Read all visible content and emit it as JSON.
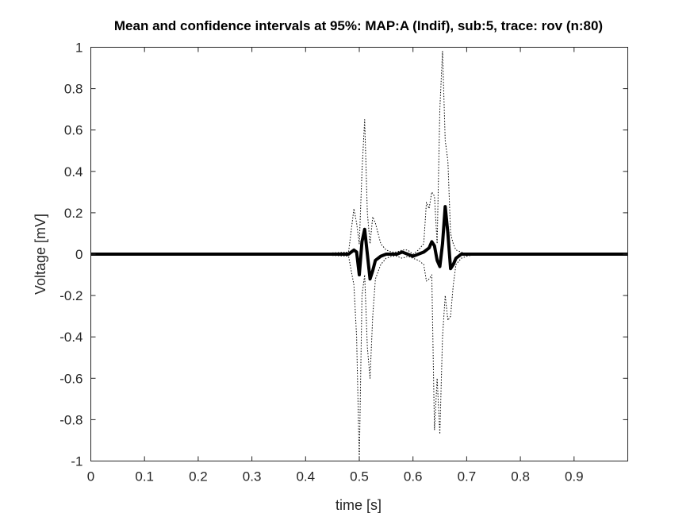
{
  "chart_data": {
    "type": "line",
    "title": "Mean and confidence intervals at 95%: MAP:A (Indif), sub:5, trace: rov (n:80)",
    "xlabel": "time [s]",
    "ylabel": "Voltage [mV]",
    "xlim": [
      0,
      1
    ],
    "ylim": [
      -1,
      1
    ],
    "xticks": [
      0,
      0.1,
      0.2,
      0.3,
      0.4,
      0.5,
      0.6,
      0.7,
      0.8,
      0.9
    ],
    "xtick_labels": [
      "0",
      "0.1",
      "0.2",
      "0.3",
      "0.4",
      "0.5",
      "0.6",
      "0.7",
      "0.8",
      "0.9"
    ],
    "yticks": [
      -1,
      -0.8,
      -0.6,
      -0.4,
      -0.2,
      0,
      0.2,
      0.4,
      0.6,
      0.8,
      1
    ],
    "ytick_labels": [
      "-1",
      "-0.8",
      "-0.6",
      "-0.4",
      "-0.2",
      "0",
      "0.2",
      "0.4",
      "0.6",
      "0.8",
      "1"
    ],
    "grid": false,
    "legend": "none",
    "colors": {
      "line": "#000000",
      "axis": "#262626",
      "background": "#ffffff"
    },
    "series": [
      {
        "role": "mean",
        "style": "solid-thick",
        "x": [
          0,
          0.1,
          0.2,
          0.3,
          0.4,
          0.48,
          0.49,
          0.495,
          0.5,
          0.505,
          0.51,
          0.515,
          0.52,
          0.525,
          0.53,
          0.54,
          0.55,
          0.56,
          0.57,
          0.58,
          0.59,
          0.6,
          0.61,
          0.62,
          0.63,
          0.635,
          0.64,
          0.645,
          0.65,
          0.655,
          0.66,
          0.665,
          0.67,
          0.675,
          0.68,
          0.69,
          0.7,
          0.72,
          0.75,
          0.8,
          0.9,
          1.0
        ],
        "y": [
          0,
          0,
          0,
          0,
          0,
          0,
          0.02,
          0.01,
          -0.1,
          0.06,
          0.12,
          0.0,
          -0.12,
          -0.08,
          -0.03,
          -0.01,
          0.0,
          0.0,
          0.0,
          0.01,
          0.0,
          -0.01,
          0.0,
          0.01,
          0.03,
          0.06,
          0.04,
          -0.03,
          -0.06,
          0.05,
          0.23,
          0.1,
          -0.07,
          -0.05,
          -0.02,
          0.0,
          0.0,
          0.0,
          0.0,
          0.0,
          0.0,
          0.0
        ]
      },
      {
        "role": "upper-ci",
        "style": "dotted",
        "x": [
          0,
          0.1,
          0.2,
          0.3,
          0.4,
          0.48,
          0.49,
          0.495,
          0.5,
          0.505,
          0.51,
          0.515,
          0.52,
          0.525,
          0.53,
          0.54,
          0.55,
          0.56,
          0.57,
          0.58,
          0.59,
          0.6,
          0.61,
          0.62,
          0.625,
          0.63,
          0.635,
          0.64,
          0.645,
          0.65,
          0.655,
          0.66,
          0.665,
          0.67,
          0.675,
          0.68,
          0.69,
          0.7,
          0.72,
          0.75,
          0.8,
          0.9,
          1.0
        ],
        "y": [
          0,
          0,
          0,
          0,
          0,
          0.01,
          0.22,
          0.15,
          0.05,
          0.4,
          0.65,
          0.2,
          0.05,
          0.18,
          0.15,
          0.05,
          0.02,
          0.01,
          0.01,
          0.02,
          0.02,
          0.0,
          0.02,
          0.05,
          0.25,
          0.22,
          0.3,
          0.28,
          0.05,
          0.7,
          0.98,
          0.55,
          0.45,
          0.1,
          0.05,
          0.02,
          0.01,
          0.0,
          0.0,
          0.0,
          0.0,
          0.0,
          0.0
        ]
      },
      {
        "role": "lower-ci",
        "style": "dotted",
        "x": [
          0,
          0.1,
          0.2,
          0.3,
          0.4,
          0.48,
          0.49,
          0.495,
          0.5,
          0.505,
          0.51,
          0.515,
          0.52,
          0.525,
          0.53,
          0.54,
          0.55,
          0.56,
          0.57,
          0.58,
          0.59,
          0.6,
          0.61,
          0.62,
          0.625,
          0.63,
          0.635,
          0.64,
          0.645,
          0.65,
          0.655,
          0.66,
          0.665,
          0.67,
          0.675,
          0.68,
          0.69,
          0.7,
          0.72,
          0.75,
          0.8,
          0.9,
          1.0
        ],
        "y": [
          0,
          0,
          0,
          0,
          0,
          -0.01,
          -0.15,
          -0.4,
          -1.0,
          -0.2,
          -0.1,
          -0.45,
          -0.6,
          -0.3,
          -0.12,
          -0.05,
          -0.02,
          -0.01,
          -0.01,
          -0.02,
          -0.01,
          -0.02,
          -0.03,
          -0.05,
          -0.13,
          -0.12,
          -0.1,
          -0.85,
          -0.6,
          -0.87,
          -0.4,
          -0.2,
          -0.32,
          -0.3,
          -0.15,
          -0.05,
          -0.02,
          -0.01,
          0.0,
          0.0,
          0.0,
          0.0,
          0.0
        ]
      }
    ]
  }
}
